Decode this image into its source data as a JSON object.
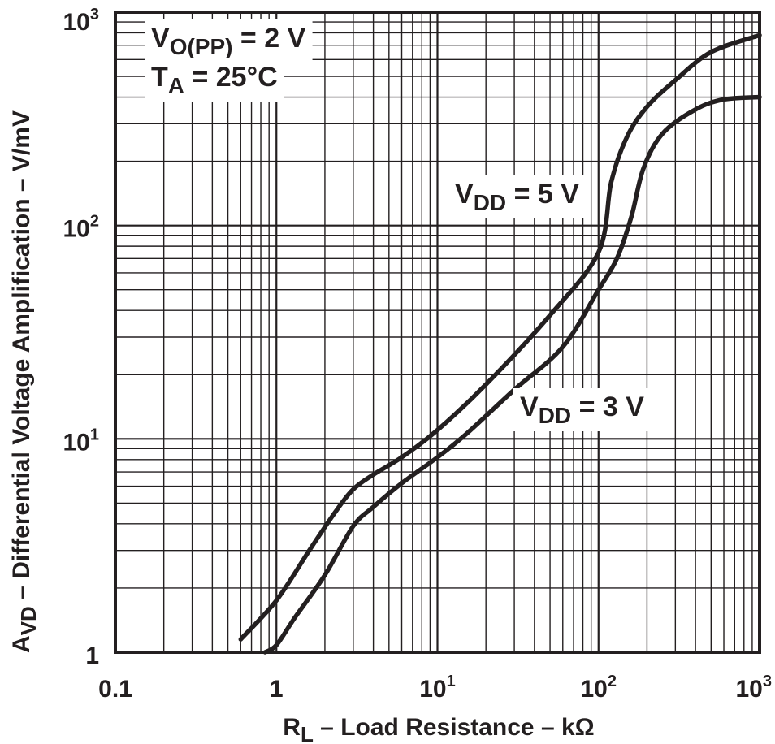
{
  "chart_data": {
    "type": "line",
    "scale": "log-log",
    "title": "",
    "xlabel": {
      "main": "R",
      "sub": "L",
      "rest": " – Load Resistance – kΩ"
    },
    "ylabel": {
      "main": "A",
      "sub": "VD",
      "rest": " – Differential Voltage Amplification – V/mV"
    },
    "xlim": [
      0.1,
      1000
    ],
    "ylim": [
      1,
      1000
    ],
    "grid": true,
    "x_ticks": [
      {
        "value": 0.1,
        "base": "0.1",
        "exp": ""
      },
      {
        "value": 1,
        "base": "1",
        "exp": ""
      },
      {
        "value": 10,
        "base": "10",
        "exp": "1"
      },
      {
        "value": 100,
        "base": "10",
        "exp": "2"
      },
      {
        "value": 1000,
        "base": "10",
        "exp": "3"
      }
    ],
    "y_ticks": [
      {
        "value": 1,
        "base": "1",
        "exp": ""
      },
      {
        "value": 10,
        "base": "10",
        "exp": "1"
      },
      {
        "value": 100,
        "base": "10",
        "exp": "2"
      },
      {
        "value": 1000,
        "base": "10",
        "exp": "3"
      }
    ],
    "conditions": [
      {
        "main": "V",
        "sub": "O(PP)",
        "rest": " = 2 V"
      },
      {
        "main": "T",
        "sub": "A",
        "rest": " = 25°C"
      }
    ],
    "series": [
      {
        "name": "VDD = 5 V",
        "label": {
          "main": "V",
          "sub": "DD",
          "rest": " = 5 V"
        },
        "x": [
          0.6,
          1,
          1.6,
          2.3,
          3,
          4,
          6,
          10,
          20,
          50,
          100,
          120,
          150,
          200,
          300,
          500,
          1000
        ],
        "y": [
          1.15,
          1.75,
          3.0,
          4.5,
          5.8,
          6.8,
          8.2,
          11,
          18,
          38,
          75,
          160,
          260,
          360,
          480,
          650,
          780
        ]
      },
      {
        "name": "VDD = 3 V",
        "label": {
          "main": "V",
          "sub": "DD",
          "rest": " = 3 V"
        },
        "x": [
          0.85,
          1.0,
          1.3,
          2,
          3,
          4,
          6,
          10,
          15,
          30,
          60,
          100,
          130,
          160,
          190,
          250,
          400,
          600,
          1000
        ],
        "y": [
          1.0,
          1.08,
          1.45,
          2.3,
          3.9,
          4.8,
          6.2,
          8.2,
          10.5,
          17,
          27,
          50,
          70,
          110,
          185,
          270,
          350,
          390,
          400
        ]
      }
    ]
  }
}
